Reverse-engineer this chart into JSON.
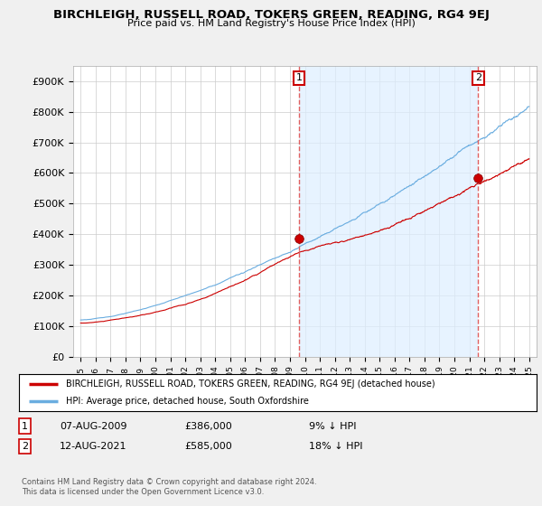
{
  "title": "BIRCHLEIGH, RUSSELL ROAD, TOKERS GREEN, READING, RG4 9EJ",
  "subtitle": "Price paid vs. HM Land Registry's House Price Index (HPI)",
  "ylabel_ticks": [
    "£0",
    "£100K",
    "£200K",
    "£300K",
    "£400K",
    "£500K",
    "£600K",
    "£700K",
    "£800K",
    "£900K"
  ],
  "ytick_values": [
    0,
    100000,
    200000,
    300000,
    400000,
    500000,
    600000,
    700000,
    800000,
    900000
  ],
  "ylim": [
    0,
    950000
  ],
  "legend_line1": "BIRCHLEIGH, RUSSELL ROAD, TOKERS GREEN, READING, RG4 9EJ (detached house)",
  "legend_line2": "HPI: Average price, detached house, South Oxfordshire",
  "sale1_date": "07-AUG-2009",
  "sale1_price": "£386,000",
  "sale1_hpi": "9% ↓ HPI",
  "sale1_year": 2009.6,
  "sale2_date": "12-AUG-2021",
  "sale2_price": "£585,000",
  "sale2_hpi": "18% ↓ HPI",
  "sale2_year": 2021.6,
  "copyright": "Contains HM Land Registry data © Crown copyright and database right 2024.\nThis data is licensed under the Open Government Licence v3.0.",
  "hpi_color": "#6aade0",
  "price_color": "#cc0000",
  "vline_color": "#e06060",
  "shade_color": "#ddeeff",
  "background_color": "#f0f0f0",
  "plot_bg_color": "#ffffff"
}
